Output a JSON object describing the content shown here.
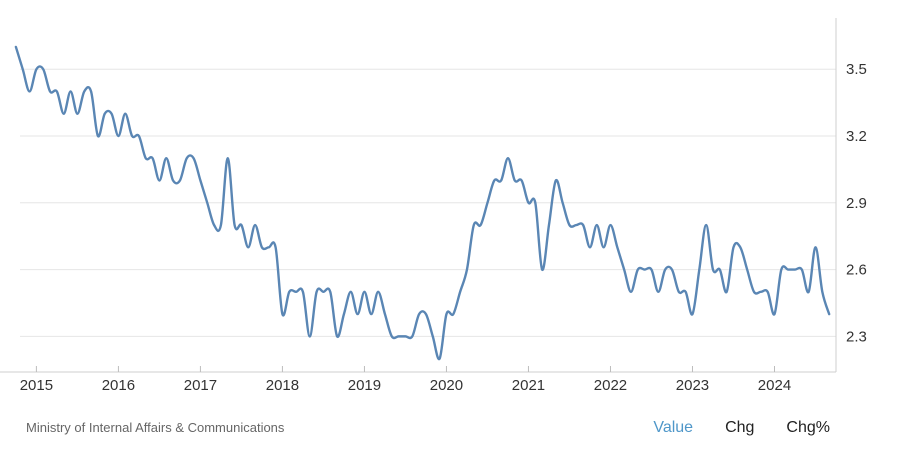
{
  "source": "Ministry of Internal Affairs & Communications",
  "tabs": [
    {
      "label": "Value",
      "active": true
    },
    {
      "label": "Chg",
      "active": false
    },
    {
      "label": "Chg%",
      "active": false
    }
  ],
  "colors": {
    "line": "#5a86b4",
    "grid": "#e6e6e6",
    "active_tab": "#4f97c9"
  },
  "chart_data": {
    "type": "line",
    "title": "",
    "xlabel": "",
    "ylabel": "",
    "yaxis_position": "right",
    "grid": "horizontal",
    "ylim": [
      2.14,
      3.73
    ],
    "xlim": [
      2014.8,
      2024.75
    ],
    "x_ticks": [
      "2015",
      "2016",
      "2017",
      "2018",
      "2019",
      "2020",
      "2021",
      "2022",
      "2023",
      "2024"
    ],
    "y_ticks": [
      "3.5",
      "3.2",
      "2.9",
      "2.6",
      "2.3"
    ],
    "series": [
      {
        "x": [
          "2014-10",
          "2014-11",
          "2014-12",
          "2015-01",
          "2015-02",
          "2015-03",
          "2015-04",
          "2015-05",
          "2015-06",
          "2015-07",
          "2015-08",
          "2015-09",
          "2015-10",
          "2015-11",
          "2015-12",
          "2016-01",
          "2016-02",
          "2016-03",
          "2016-04",
          "2016-05",
          "2016-06",
          "2016-07",
          "2016-08",
          "2016-09",
          "2016-10",
          "2016-11",
          "2016-12",
          "2017-01",
          "2017-02",
          "2017-03",
          "2017-04",
          "2017-05",
          "2017-06",
          "2017-07",
          "2017-08",
          "2017-09",
          "2017-10",
          "2017-11",
          "2017-12",
          "2018-01",
          "2018-02",
          "2018-03",
          "2018-04",
          "2018-05",
          "2018-06",
          "2018-07",
          "2018-08",
          "2018-09",
          "2018-10",
          "2018-11",
          "2018-12",
          "2019-01",
          "2019-02",
          "2019-03",
          "2019-04",
          "2019-05",
          "2019-06",
          "2019-07",
          "2019-08",
          "2019-09",
          "2019-10",
          "2019-11",
          "2019-12",
          "2020-01",
          "2020-02",
          "2020-03",
          "2020-04",
          "2020-05",
          "2020-06",
          "2020-07",
          "2020-08",
          "2020-09",
          "2020-10",
          "2020-11",
          "2020-12",
          "2021-01",
          "2021-02",
          "2021-03",
          "2021-04",
          "2021-05",
          "2021-06",
          "2021-07",
          "2021-08",
          "2021-09",
          "2021-10",
          "2021-11",
          "2021-12",
          "2022-01",
          "2022-02",
          "2022-03",
          "2022-04",
          "2022-05",
          "2022-06",
          "2022-07",
          "2022-08",
          "2022-09",
          "2022-10",
          "2022-11",
          "2022-12",
          "2023-01",
          "2023-02",
          "2023-03",
          "2023-04",
          "2023-05",
          "2023-06",
          "2023-07",
          "2023-08",
          "2023-09",
          "2023-10",
          "2023-11",
          "2023-12",
          "2024-01",
          "2024-02",
          "2024-03",
          "2024-04",
          "2024-05",
          "2024-06",
          "2024-07",
          "2024-08",
          "2024-09"
        ],
        "values": [
          3.6,
          3.5,
          3.4,
          3.5,
          3.5,
          3.4,
          3.4,
          3.3,
          3.4,
          3.3,
          3.4,
          3.4,
          3.2,
          3.3,
          3.3,
          3.2,
          3.3,
          3.2,
          3.2,
          3.1,
          3.1,
          3.0,
          3.1,
          3.0,
          3.0,
          3.1,
          3.1,
          3.0,
          2.9,
          2.8,
          2.8,
          3.1,
          2.8,
          2.8,
          2.7,
          2.8,
          2.7,
          2.7,
          2.7,
          2.4,
          2.5,
          2.5,
          2.5,
          2.3,
          2.5,
          2.5,
          2.5,
          2.3,
          2.4,
          2.5,
          2.4,
          2.5,
          2.4,
          2.5,
          2.4,
          2.3,
          2.3,
          2.3,
          2.3,
          2.4,
          2.4,
          2.3,
          2.2,
          2.4,
          2.4,
          2.5,
          2.6,
          2.8,
          2.8,
          2.9,
          3.0,
          3.0,
          3.1,
          3.0,
          3.0,
          2.9,
          2.9,
          2.6,
          2.8,
          3.0,
          2.9,
          2.8,
          2.8,
          2.8,
          2.7,
          2.8,
          2.7,
          2.8,
          2.7,
          2.6,
          2.5,
          2.6,
          2.6,
          2.6,
          2.5,
          2.6,
          2.6,
          2.5,
          2.5,
          2.4,
          2.6,
          2.8,
          2.6,
          2.6,
          2.5,
          2.7,
          2.7,
          2.6,
          2.5,
          2.5,
          2.5,
          2.4,
          2.6,
          2.6,
          2.6,
          2.6,
          2.5,
          2.7,
          2.5,
          2.4
        ]
      }
    ]
  }
}
